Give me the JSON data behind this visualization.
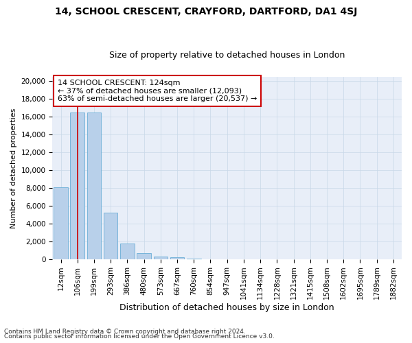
{
  "title1": "14, SCHOOL CRESCENT, CRAYFORD, DARTFORD, DA1 4SJ",
  "title2": "Size of property relative to detached houses in London",
  "xlabel": "Distribution of detached houses by size in London",
  "ylabel": "Number of detached properties",
  "categories": [
    "12sqm",
    "106sqm",
    "199sqm",
    "293sqm",
    "386sqm",
    "480sqm",
    "573sqm",
    "667sqm",
    "760sqm",
    "854sqm",
    "947sqm",
    "1041sqm",
    "1134sqm",
    "1228sqm",
    "1321sqm",
    "1415sqm",
    "1508sqm",
    "1602sqm",
    "1695sqm",
    "1789sqm",
    "1882sqm"
  ],
  "values": [
    8050,
    16500,
    16500,
    5200,
    1750,
    700,
    340,
    240,
    100,
    30,
    0,
    0,
    0,
    0,
    0,
    0,
    0,
    0,
    0,
    0,
    0
  ],
  "bar_color": "#b8d0ea",
  "bar_edge_color": "#6aaed6",
  "vline_x_idx": 1,
  "vline_color": "#cc0000",
  "annotation_line1": "14 SCHOOL CRESCENT: 124sqm",
  "annotation_line2": "← 37% of detached houses are smaller (12,093)",
  "annotation_line3": "63% of semi-detached houses are larger (20,537) →",
  "annotation_box_color": "#cc0000",
  "ylim_max": 20500,
  "ytick_max": 20000,
  "ytick_step": 2000,
  "grid_color": "#c8d8e8",
  "bg_color": "#e8eef8",
  "footer_line1": "Contains HM Land Registry data © Crown copyright and database right 2024.",
  "footer_line2": "Contains public sector information licensed under the Open Government Licence v3.0.",
  "title1_fontsize": 10,
  "title2_fontsize": 9,
  "ylabel_fontsize": 8,
  "xlabel_fontsize": 9,
  "tick_fontsize": 7.5,
  "footer_fontsize": 6.5,
  "annot_fontsize": 8
}
